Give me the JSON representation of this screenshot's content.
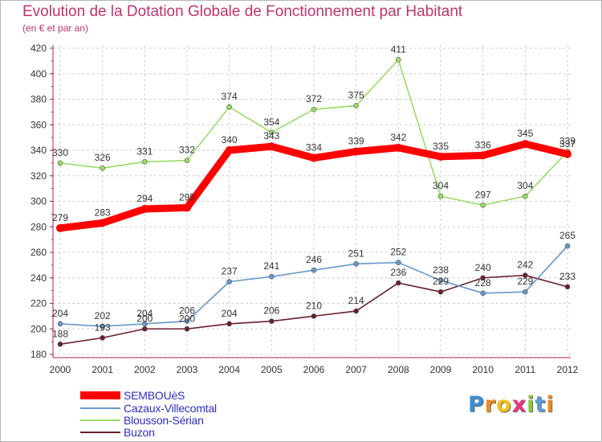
{
  "chart_data": {
    "type": "line",
    "title": "Evolution de la Dotation Globale de Fonctionnement par Habitant",
    "subtitle": "(en € et par an)",
    "x": [
      "2000",
      "2001",
      "2002",
      "2003",
      "2004",
      "2005",
      "2006",
      "2007",
      "2008",
      "2009",
      "2010",
      "2011",
      "2012"
    ],
    "ylim": [
      180,
      420
    ],
    "yticks": [
      180,
      200,
      220,
      240,
      260,
      280,
      300,
      320,
      340,
      360,
      380,
      400,
      420
    ],
    "grid": true,
    "legend_position": "bottom-left",
    "series": [
      {
        "name": "SEMBOUèS",
        "color": "#ff0000",
        "values": [
          279,
          283,
          294,
          295,
          340,
          343,
          334,
          339,
          342,
          335,
          336,
          345,
          337
        ],
        "emphasis": true
      },
      {
        "name": "Cazaux-Villecomtal",
        "color": "#6699cc",
        "values": [
          204,
          202,
          204,
          206,
          237,
          241,
          246,
          251,
          252,
          238,
          228,
          229,
          265
        ]
      },
      {
        "name": "Blousson-Sérian",
        "color": "#99dd66",
        "values": [
          330,
          326,
          331,
          332,
          374,
          354,
          372,
          375,
          411,
          304,
          297,
          304,
          339
        ]
      },
      {
        "name": "Buzon",
        "color": "#6b1f2a",
        "values": [
          188,
          193,
          200,
          200,
          204,
          206,
          210,
          214,
          236,
          229,
          240,
          242,
          233
        ]
      }
    ]
  },
  "brand": {
    "letters": [
      "P",
      "r",
      "o",
      "x",
      "i",
      "t",
      "i"
    ],
    "colors": [
      "#3c8fd6",
      "#f08a1c",
      "#f3c219",
      "#e83a7d",
      "#8cc63f",
      "#5a9ad8",
      "#f08a1c"
    ]
  }
}
